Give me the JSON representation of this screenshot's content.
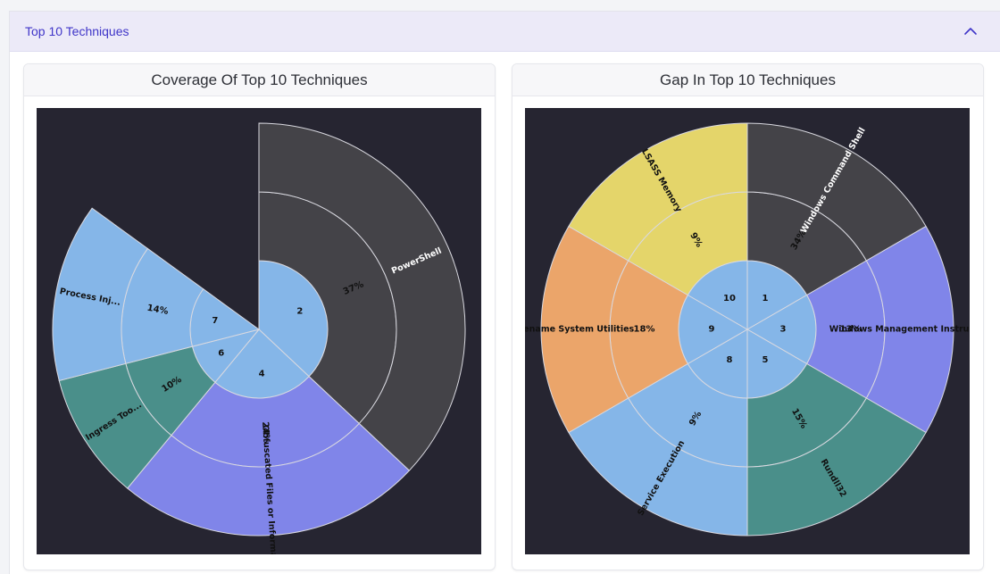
{
  "section": {
    "title": "Top 10 Techniques"
  },
  "cards": [
    {
      "title": "Coverage Of Top 10 Techniques",
      "chart_data": {
        "type": "sunburst",
        "background": "#262531",
        "rings": [
          {
            "level": "id",
            "segments": [
              {
                "label": "2",
                "value": 37,
                "color": "#85b6e8"
              },
              {
                "label": "4",
                "value": 24,
                "color": "#85b6e8"
              },
              {
                "label": "6",
                "value": 10,
                "color": "#85b6e8"
              },
              {
                "label": "7",
                "value": 14,
                "color": "#85b6e8"
              }
            ]
          },
          {
            "level": "percent",
            "segments": [
              {
                "label": "37%",
                "value": 37,
                "color": "#444348"
              },
              {
                "label": "24%",
                "value": 24,
                "color": "#8085e9"
              },
              {
                "label": "10%",
                "value": 10,
                "color": "#4a8f8a"
              },
              {
                "label": "14%",
                "value": 14,
                "color": "#85b6e8"
              }
            ]
          },
          {
            "level": "technique",
            "segments": [
              {
                "label": "PowerShell",
                "value": 37,
                "color": "#444348"
              },
              {
                "label": "Obfuscated Files or Information",
                "value": 24,
                "color": "#8085e9"
              },
              {
                "label": "Ingress Too...",
                "value": 10,
                "color": "#4a8f8a"
              },
              {
                "label": "Process Inj...",
                "value": 14,
                "color": "#85b6e8"
              }
            ]
          }
        ]
      }
    },
    {
      "title": "Gap In Top 10 Techniques",
      "chart_data": {
        "type": "sunburst",
        "background": "#262531",
        "rings": [
          {
            "level": "id",
            "segments": [
              {
                "label": "1",
                "value": 1,
                "color": "#85b6e8"
              },
              {
                "label": "3",
                "value": 1,
                "color": "#85b6e8"
              },
              {
                "label": "5",
                "value": 1,
                "color": "#85b6e8"
              },
              {
                "label": "8",
                "value": 1,
                "color": "#85b6e8"
              },
              {
                "label": "9",
                "value": 1,
                "color": "#85b6e8"
              },
              {
                "label": "10",
                "value": 1,
                "color": "#85b6e8"
              }
            ]
          },
          {
            "level": "percent",
            "segments": [
              {
                "label": "34%",
                "value": 1,
                "color": "#444348"
              },
              {
                "label": "13%",
                "value": 1,
                "color": "#8085e9"
              },
              {
                "label": "15%",
                "value": 1,
                "color": "#4a8f8a"
              },
              {
                "label": "9%",
                "value": 1,
                "color": "#85b6e8"
              },
              {
                "label": "18%",
                "value": 1,
                "color": "#eba56a"
              },
              {
                "label": "9%",
                "value": 1,
                "color": "#e4d56a"
              }
            ]
          },
          {
            "level": "technique",
            "segments": [
              {
                "label": "Windows Command Shell",
                "value": 1,
                "color": "#444348"
              },
              {
                "label": "Windows Management Instrumenta...",
                "value": 1,
                "color": "#8085e9"
              },
              {
                "label": "Rundll32",
                "value": 1,
                "color": "#4a8f8a"
              },
              {
                "label": "Service Execution",
                "value": 1,
                "color": "#85b6e8"
              },
              {
                "label": "Rename System Utilities",
                "value": 1,
                "color": "#eba56a"
              },
              {
                "label": "LSASS Memory",
                "value": 1,
                "color": "#e4d56a"
              }
            ]
          }
        ]
      }
    }
  ]
}
